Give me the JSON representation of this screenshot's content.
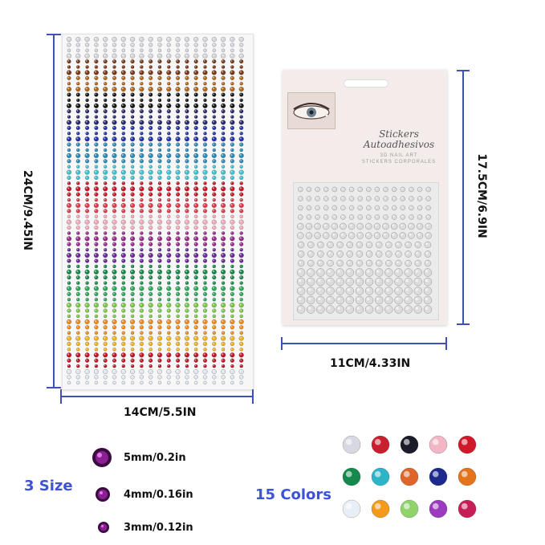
{
  "dimensions": {
    "large_height": "24CM/9.45IN",
    "large_width": "14CM/5.5IN",
    "small_height": "17.5CM/6.9IN",
    "small_width": "11CM/4.33IN"
  },
  "package": {
    "title_line1": "Stickers",
    "title_line2": "Autoadhesivos",
    "sub_line1": "3D NAIL ART",
    "sub_line2": "STICKERS CORPORALES"
  },
  "sizes": {
    "heading": "3 Size",
    "items": [
      "5mm/0.2in",
      "4mm/0.16in",
      "3mm/0.12in"
    ]
  },
  "colors": {
    "heading": "15 Colors",
    "swatches": [
      "#d8d8e2",
      "#c9202f",
      "#1b1b2a",
      "#f2b6c4",
      "#d0182a",
      "#138a4c",
      "#2db4c8",
      "#e0652a",
      "#1b2a8c",
      "#e5731b",
      "#e8eef5",
      "#f39a1c",
      "#8fd36a",
      "#9b3cc0",
      "#c71e58"
    ]
  },
  "accent_color": "#3f51b5"
}
